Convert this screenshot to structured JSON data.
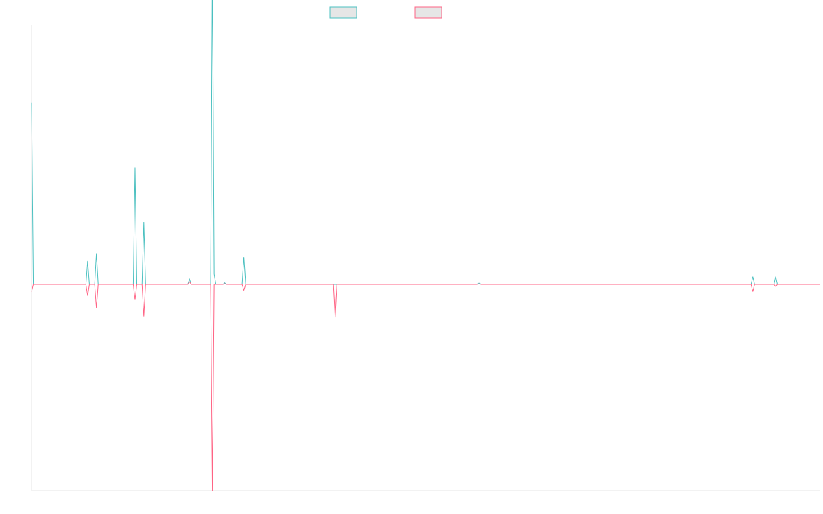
{
  "chart_data": {
    "type": "line",
    "title": "",
    "xlabel": "",
    "ylabel": "",
    "grid": false,
    "legend_position": "top-center",
    "x": [
      0,
      1,
      2,
      3,
      4,
      5,
      6,
      7,
      8,
      9,
      10,
      11,
      12,
      13,
      14,
      15,
      16,
      17,
      18,
      19,
      20,
      21,
      22,
      23,
      24,
      25,
      26,
      27,
      28,
      29,
      30,
      31,
      32,
      33,
      34,
      35,
      36,
      37,
      38,
      39,
      40,
      41,
      42,
      43,
      44,
      45,
      46,
      47,
      48,
      49,
      50,
      51,
      52,
      53,
      54,
      55,
      56,
      57,
      58,
      59,
      60,
      61,
      62,
      63,
      64,
      65,
      66,
      67,
      68,
      69,
      70,
      71,
      72,
      73,
      74,
      75,
      76,
      77,
      78,
      79,
      80,
      81,
      82,
      83,
      84,
      85,
      86,
      87,
      88,
      89,
      90,
      91,
      92,
      93,
      94,
      95,
      96,
      97,
      98,
      99,
      100,
      101,
      102,
      103,
      104,
      105,
      106,
      107,
      108,
      109,
      110,
      111,
      112,
      113,
      114,
      115,
      116,
      117,
      118,
      119,
      120,
      121,
      122,
      123,
      124,
      125,
      126,
      127,
      128,
      129,
      130,
      131,
      132,
      133,
      134,
      135,
      136,
      137,
      138,
      139,
      140,
      141,
      142,
      143,
      144,
      145,
      146,
      147,
      148,
      149,
      150,
      151,
      152,
      153,
      154,
      155,
      156,
      157,
      158,
      159,
      160,
      161,
      162,
      163,
      164,
      165,
      166,
      167,
      168,
      169,
      170,
      171,
      172,
      173,
      174,
      175,
      176,
      177,
      178,
      179,
      180,
      181,
      182,
      183,
      184,
      185,
      186,
      187,
      188,
      189,
      190,
      191,
      192,
      193,
      194,
      195,
      196,
      197,
      198,
      199,
      200,
      201,
      202,
      203,
      204,
      205,
      206,
      207,
      208,
      209,
      210,
      211,
      212,
      213,
      214,
      215,
      216,
      217,
      218,
      219,
      220,
      221,
      222,
      223,
      224,
      225,
      226,
      227,
      228,
      229,
      230,
      231,
      232,
      233,
      234,
      235,
      236,
      237,
      238,
      239,
      240,
      241,
      242,
      243,
      244,
      245,
      246,
      247,
      248,
      249,
      250,
      251,
      252,
      253,
      254,
      255,
      256,
      257,
      258,
      259,
      260,
      261,
      262,
      263,
      264,
      265,
      266,
      267,
      268,
      269,
      270,
      271,
      272,
      273,
      274,
      275,
      276,
      277,
      278,
      279,
      280,
      281,
      282,
      283,
      284,
      285,
      286,
      287,
      288,
      289,
      290,
      291,
      292,
      293,
      294,
      295,
      296,
      297,
      298,
      299,
      300,
      301,
      302,
      303,
      304,
      305,
      306,
      307,
      308,
      309,
      310,
      311,
      312,
      313,
      314,
      315,
      316,
      317,
      318,
      319,
      320,
      321,
      322,
      323,
      324,
      325,
      326,
      327,
      328,
      329,
      330,
      331,
      332,
      333,
      334,
      335,
      336,
      337,
      338,
      339,
      340,
      341,
      342,
      343,
      344,
      345,
      346,
      347,
      348,
      349,
      350,
      351,
      352,
      353,
      354,
      355,
      356,
      357,
      358,
      359,
      360,
      361,
      362,
      363,
      364,
      365,
      366,
      367,
      368,
      369,
      370,
      371,
      372,
      373,
      374,
      375,
      376,
      377,
      378,
      379,
      380,
      381,
      382,
      383,
      384,
      385,
      386,
      387,
      388,
      389,
      390,
      391,
      392,
      393,
      394,
      395,
      396,
      397,
      398,
      399,
      400,
      401,
      402,
      403,
      404,
      405,
      406,
      407,
      408,
      409,
      410,
      411,
      412,
      413,
      414,
      415,
      416,
      417,
      418,
      419,
      420,
      421,
      422,
      423,
      424,
      425,
      426,
      427,
      428,
      429,
      430,
      431,
      432,
      433,
      434,
      435,
      436,
      437,
      438,
      439,
      440,
      441,
      442,
      443,
      444,
      445,
      446,
      447,
      448,
      449
    ],
    "ylim": [
      -1,
      1
    ],
    "series": [
      {
        "name": "",
        "color": "#4BC0C0",
        "points": [
          [
            0,
            0.7
          ],
          [
            1,
            0
          ],
          [
            31,
            0
          ],
          [
            32,
            0.09
          ],
          [
            33,
            0
          ],
          [
            36,
            0
          ],
          [
            37,
            0.12
          ],
          [
            38,
            0
          ],
          [
            58,
            0
          ],
          [
            59,
            0.45
          ],
          [
            60,
            0
          ],
          [
            63,
            0
          ],
          [
            64,
            0.24
          ],
          [
            65,
            0
          ],
          [
            89,
            0
          ],
          [
            90,
            0.02
          ],
          [
            91,
            0
          ],
          [
            102,
            0
          ],
          [
            103,
            1.25
          ],
          [
            104,
            0.04
          ],
          [
            105,
            0
          ],
          [
            109,
            0
          ],
          [
            110,
            0.006
          ],
          [
            111,
            0
          ],
          [
            120,
            0
          ],
          [
            121,
            0.105
          ],
          [
            122,
            0
          ],
          [
            254,
            0
          ],
          [
            255,
            0.006
          ],
          [
            256,
            0
          ],
          [
            410,
            0
          ],
          [
            411,
            0.03
          ],
          [
            412,
            0
          ],
          [
            423,
            0
          ],
          [
            424,
            0.03
          ],
          [
            425,
            0
          ],
          [
            449,
            0
          ]
        ]
      },
      {
        "name": "",
        "color": "#FF6384",
        "points": [
          [
            0,
            -0.035
          ],
          [
            1,
            0
          ],
          [
            31,
            0
          ],
          [
            32,
            -0.055
          ],
          [
            33,
            0
          ],
          [
            36,
            0
          ],
          [
            37,
            -0.115
          ],
          [
            38,
            0
          ],
          [
            58,
            0
          ],
          [
            59,
            -0.075
          ],
          [
            60,
            0
          ],
          [
            63,
            0
          ],
          [
            64,
            -0.155
          ],
          [
            65,
            0
          ],
          [
            89,
            0
          ],
          [
            90,
            0.01
          ],
          [
            91,
            0
          ],
          [
            102,
            0
          ],
          [
            103,
            -1
          ],
          [
            104,
            0
          ],
          [
            109,
            0
          ],
          [
            110,
            0.003
          ],
          [
            111,
            0
          ],
          [
            120,
            0
          ],
          [
            121,
            -0.028
          ],
          [
            122,
            0
          ],
          [
            172,
            0
          ],
          [
            173,
            -0.16
          ],
          [
            174,
            0
          ],
          [
            254,
            0
          ],
          [
            255,
            0.003
          ],
          [
            256,
            0
          ],
          [
            410,
            0
          ],
          [
            411,
            -0.035
          ],
          [
            412,
            0
          ],
          [
            423,
            0
          ],
          [
            424,
            -0.01
          ],
          [
            425,
            0
          ],
          [
            449,
            0
          ]
        ]
      }
    ]
  }
}
